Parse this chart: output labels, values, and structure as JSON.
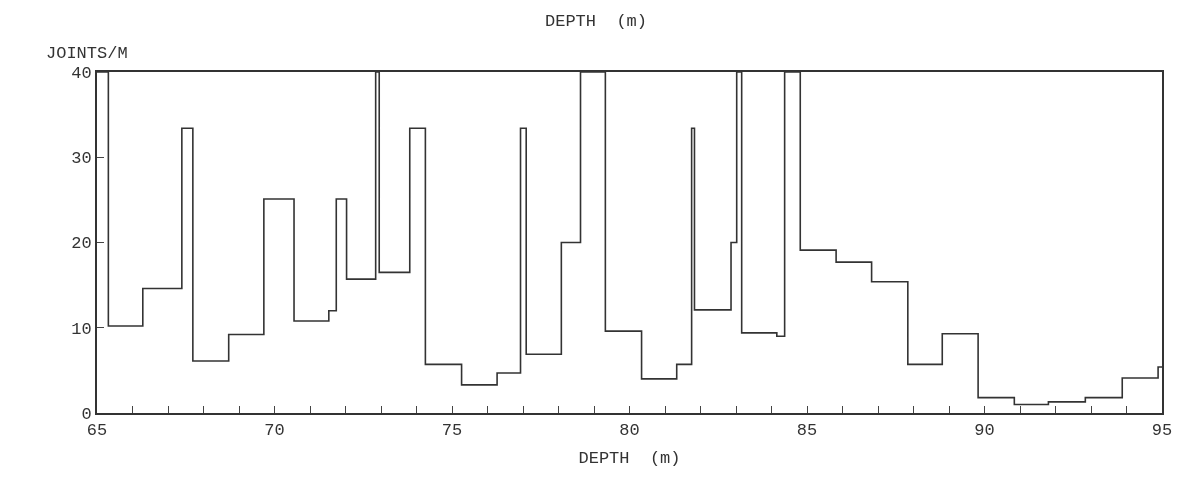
{
  "chart_data": {
    "type": "step",
    "title": "DEPTH  (m)",
    "xlabel": "DEPTH  (m)",
    "ylabel": "JOINTS/M",
    "x": [
      65,
      65.32,
      66.29,
      67.39,
      67.7,
      68.71,
      69.7,
      70.55,
      71.53,
      71.74,
      72.03,
      72.85,
      72.95,
      73.81,
      74.25,
      75.27,
      76.27,
      76.93,
      77.09,
      78.08,
      78.62,
      79.32,
      80.34,
      81.33,
      81.75,
      81.83,
      82.86,
      83.02,
      83.16,
      84.15,
      84.37,
      84.81,
      85.82,
      86.82,
      87.84,
      88.81,
      89.82,
      90.84,
      91.8,
      92.84,
      93.88,
      94.89,
      95
    ],
    "series": [
      {
        "color": "#333333",
        "values": [
          40,
          10.2,
          14.6,
          33.4,
          6.1,
          9.2,
          25.1,
          10.8,
          12.0,
          25.1,
          15.7,
          40,
          16.5,
          33.4,
          5.7,
          3.3,
          4.7,
          33.4,
          6.9,
          20.0,
          40,
          9.6,
          4.0,
          5.7,
          33.4,
          12.1,
          20.0,
          40,
          9.4,
          9.0,
          40,
          19.1,
          17.7,
          15.4,
          5.7,
          9.3,
          1.8,
          1.0,
          1.3,
          1.8,
          4.1,
          5.4,
          5.4
        ]
      }
    ],
    "xlim": [
      65,
      95
    ],
    "ylim": [
      0,
      40
    ],
    "xticks": [
      65,
      {
        "value": 66,
        "label": null
      },
      {
        "value": 67,
        "label": null
      },
      {
        "value": 68,
        "label": null
      },
      {
        "value": 69,
        "label": null
      },
      70,
      {
        "value": 71,
        "label": null
      },
      {
        "value": 72,
        "label": null
      },
      {
        "value": 73,
        "label": null
      },
      {
        "value": 74,
        "label": null
      },
      75,
      {
        "value": 76,
        "label": null
      },
      {
        "value": 77,
        "label": null
      },
      {
        "value": 78,
        "label": null
      },
      {
        "value": 79,
        "label": null
      },
      80,
      {
        "value": 81,
        "label": null
      },
      {
        "value": 82,
        "label": null
      },
      {
        "value": 83,
        "label": null
      },
      {
        "value": 84,
        "label": null
      },
      85,
      {
        "value": 86,
        "label": null
      },
      {
        "value": 87,
        "label": null
      },
      {
        "value": 88,
        "label": null
      },
      {
        "value": 89,
        "label": null
      },
      90,
      {
        "value": 91,
        "label": null
      },
      {
        "value": 92,
        "label": null
      },
      {
        "value": 93,
        "label": null
      },
      {
        "value": 94,
        "label": null
      },
      95
    ],
    "yticks": [
      0,
      10,
      20,
      30,
      40
    ],
    "marker": "none",
    "line_style": "solid"
  }
}
